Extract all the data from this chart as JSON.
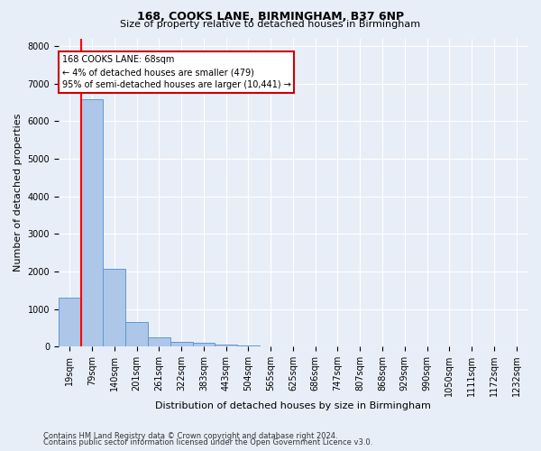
{
  "title1": "168, COOKS LANE, BIRMINGHAM, B37 6NP",
  "title2": "Size of property relative to detached houses in Birmingham",
  "xlabel": "Distribution of detached houses by size in Birmingham",
  "ylabel": "Number of detached properties",
  "footnote1": "Contains HM Land Registry data © Crown copyright and database right 2024.",
  "footnote2": "Contains public sector information licensed under the Open Government Licence v3.0.",
  "annotation_line1": "168 COOKS LANE: 68sqm",
  "annotation_line2": "← 4% of detached houses are smaller (479)",
  "annotation_line3": "95% of semi-detached houses are larger (10,441) →",
  "bin_labels": [
    "19sqm",
    "79sqm",
    "140sqm",
    "201sqm",
    "261sqm",
    "322sqm",
    "383sqm",
    "443sqm",
    "504sqm",
    "565sqm",
    "625sqm",
    "686sqm",
    "747sqm",
    "807sqm",
    "868sqm",
    "929sqm",
    "990sqm",
    "1050sqm",
    "1111sqm",
    "1172sqm",
    "1232sqm"
  ],
  "bar_values": [
    1300,
    6580,
    2080,
    650,
    250,
    130,
    100,
    65,
    40,
    0,
    0,
    0,
    0,
    0,
    0,
    0,
    0,
    0,
    0,
    0,
    0
  ],
  "bar_color": "#aec6e8",
  "bar_edge_color": "#5b9bd5",
  "highlight_color": "#ff0000",
  "red_line_x": 0.5,
  "ylim": [
    0,
    8200
  ],
  "yticks": [
    0,
    1000,
    2000,
    3000,
    4000,
    5000,
    6000,
    7000,
    8000
  ],
  "background_color": "#e8eef8",
  "grid_color": "#ffffff",
  "annotation_box_color": "#ffffff",
  "annotation_box_edge": "#cc0000",
  "title1_fontsize": 9,
  "title2_fontsize": 8,
  "ylabel_fontsize": 8,
  "xlabel_fontsize": 8,
  "tick_fontsize": 7,
  "footnote_fontsize": 6
}
